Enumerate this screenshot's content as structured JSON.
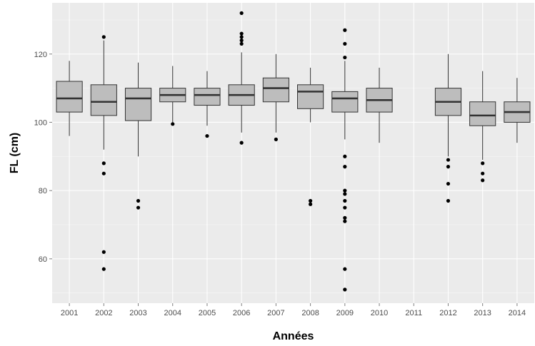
{
  "chart_data": {
    "type": "boxplot",
    "xlabel": "Années",
    "ylabel": "FL (cm)",
    "ylim": [
      47,
      135
    ],
    "yticks": [
      60,
      80,
      100,
      120
    ],
    "categories": [
      "2001",
      "2002",
      "2003",
      "2004",
      "2005",
      "2006",
      "2007",
      "2008",
      "2009",
      "2010",
      "2011",
      "2012",
      "2013",
      "2014"
    ],
    "boxes": [
      {
        "category": "2001",
        "whisker_low": 96,
        "q1": 103,
        "median": 107,
        "q3": 112,
        "whisker_high": 118,
        "outliers": []
      },
      {
        "category": "2002",
        "whisker_low": 92,
        "q1": 102,
        "median": 106,
        "q3": 111,
        "whisker_high": 124,
        "outliers": [
          125,
          88,
          85,
          62,
          57
        ]
      },
      {
        "category": "2003",
        "whisker_low": 90,
        "q1": 100.5,
        "median": 107,
        "q3": 110,
        "whisker_high": 117.5,
        "outliers": [
          77,
          75
        ]
      },
      {
        "category": "2004",
        "whisker_low": 100,
        "q1": 106,
        "median": 108,
        "q3": 110,
        "whisker_high": 116.5,
        "outliers": [
          99.5
        ]
      },
      {
        "category": "2005",
        "whisker_low": 99,
        "q1": 105,
        "median": 108,
        "q3": 110,
        "whisker_high": 115,
        "outliers": [
          96
        ]
      },
      {
        "category": "2006",
        "whisker_low": 97,
        "q1": 105,
        "median": 108,
        "q3": 111,
        "whisker_high": 120.5,
        "outliers": [
          132,
          126,
          125,
          124,
          123,
          94
        ]
      },
      {
        "category": "2007",
        "whisker_low": 97,
        "q1": 106,
        "median": 110,
        "q3": 113,
        "whisker_high": 120,
        "outliers": [
          95
        ]
      },
      {
        "category": "2008",
        "whisker_low": 100,
        "q1": 104,
        "median": 109,
        "q3": 111,
        "whisker_high": 116,
        "outliers": [
          77,
          76
        ]
      },
      {
        "category": "2009",
        "whisker_low": 95,
        "q1": 103,
        "median": 107,
        "q3": 109,
        "whisker_high": 118,
        "outliers": [
          127,
          123,
          119,
          90,
          87,
          80,
          79,
          77,
          75,
          72,
          71,
          57,
          51
        ]
      },
      {
        "category": "2010",
        "whisker_low": 94,
        "q1": 103,
        "median": 106.5,
        "q3": 110,
        "whisker_high": 116,
        "outliers": []
      },
      {
        "category": "2011",
        "whisker_low": null,
        "q1": null,
        "median": null,
        "q3": null,
        "whisker_high": null,
        "outliers": []
      },
      {
        "category": "2012",
        "whisker_low": 90,
        "q1": 102,
        "median": 106,
        "q3": 110,
        "whisker_high": 120,
        "outliers": [
          89,
          87,
          82,
          77
        ]
      },
      {
        "category": "2013",
        "whisker_low": 89,
        "q1": 99,
        "median": 102,
        "q3": 106,
        "whisker_high": 115,
        "outliers": [
          88,
          85,
          83
        ]
      },
      {
        "category": "2014",
        "whisker_low": 94,
        "q1": 100,
        "median": 103,
        "q3": 106,
        "whisker_high": 113,
        "outliers": []
      }
    ],
    "grid": true,
    "legend": "none",
    "colors": {
      "panel_bg": "#ebebeb",
      "grid_major": "#ffffff",
      "grid_minor": "#f5f5f5",
      "box_fill": "#bdbdbd",
      "box_stroke": "#333333",
      "median": "#333333",
      "whisker": "#333333",
      "outlier": "#000000"
    }
  }
}
